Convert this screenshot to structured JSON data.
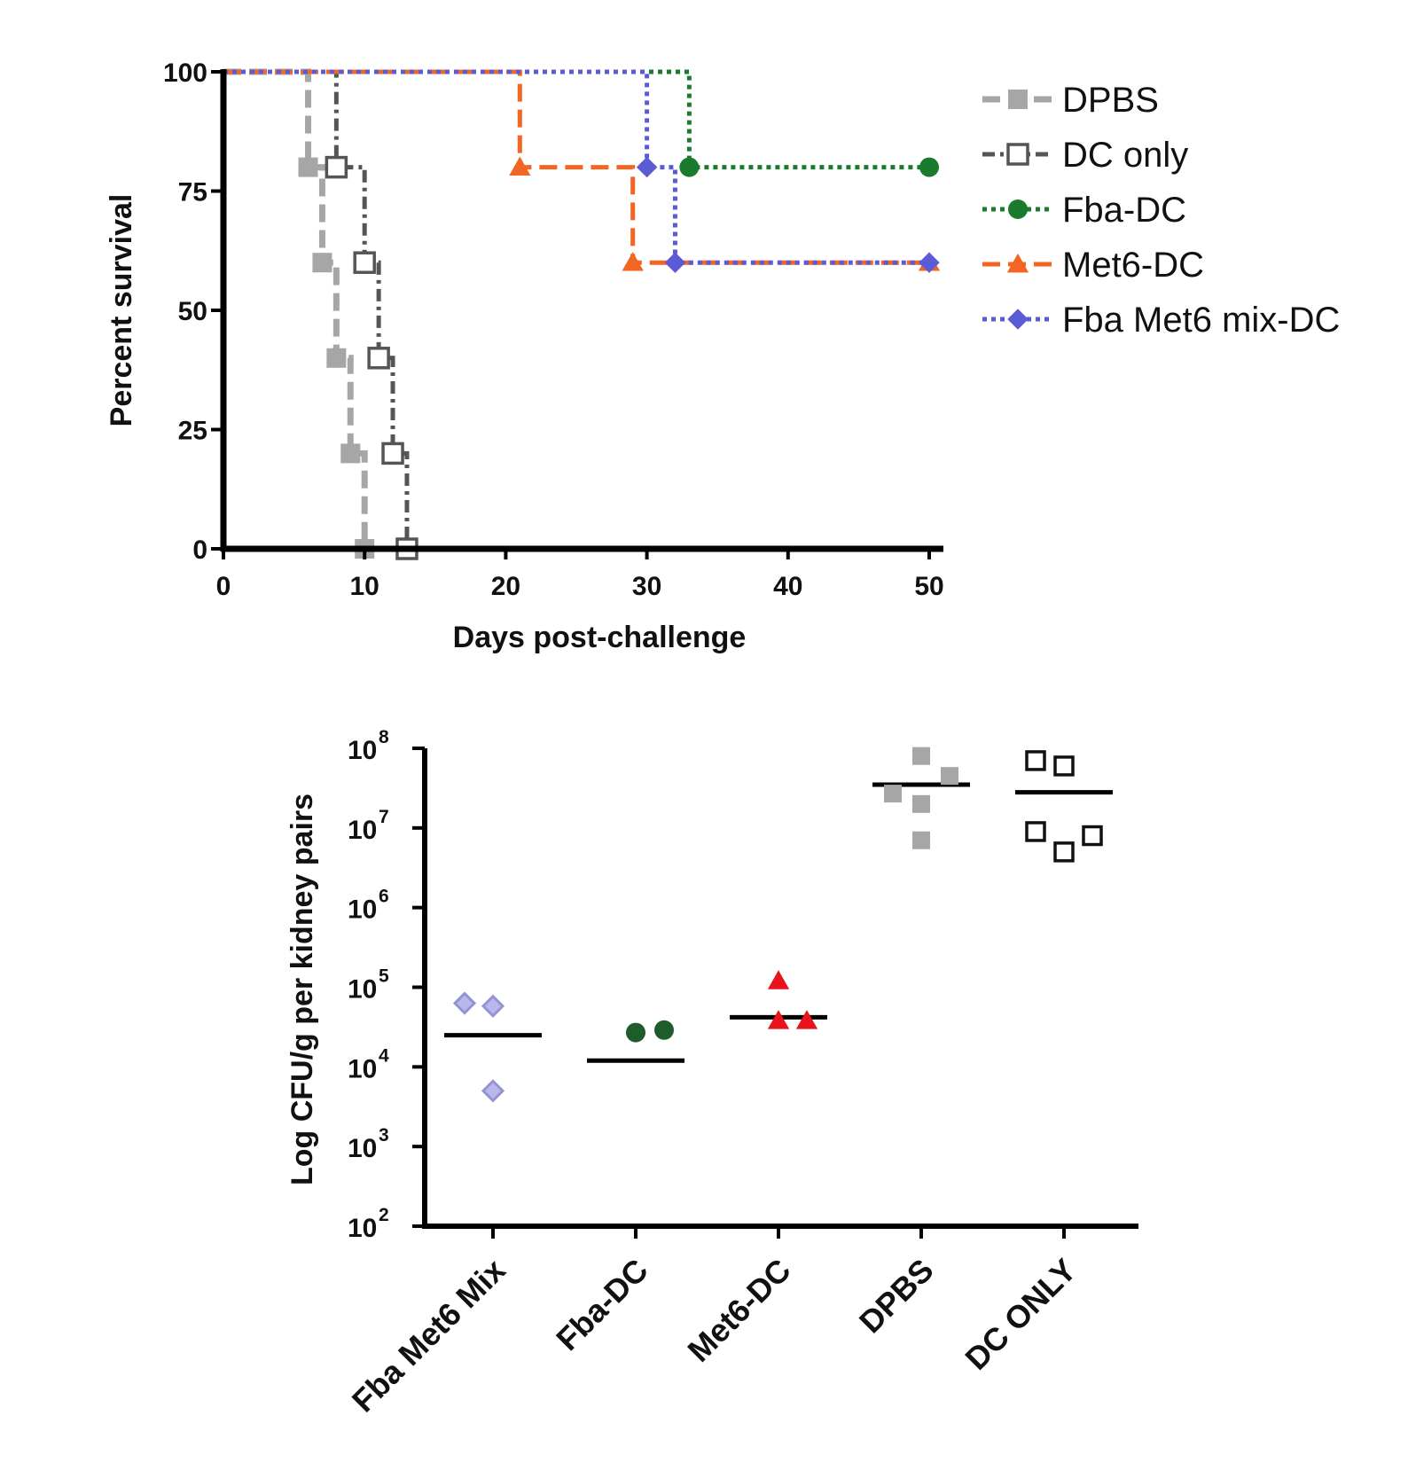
{
  "chart_data": [
    {
      "type": "line",
      "step": true,
      "xlabel": "Days post-challenge",
      "ylabel": "Percent survival",
      "xlim": [
        0,
        50
      ],
      "ylim": [
        0,
        100
      ],
      "xticks": [
        "0",
        "10",
        "20",
        "30",
        "40",
        "50"
      ],
      "yticks": [
        "0",
        "25",
        "50",
        "75",
        "100"
      ],
      "legend_position": "right",
      "series": [
        {
          "name": "DPBS",
          "color": "#a6a6a6",
          "marker": "square-filled",
          "line": "dashed",
          "x": [
            0,
            6,
            7,
            8,
            9,
            10
          ],
          "y": [
            100,
            80,
            60,
            40,
            20,
            0
          ]
        },
        {
          "name": "DC only",
          "color": "#555555",
          "marker": "square-open",
          "line": "dash-dot",
          "x": [
            0,
            8,
            10,
            11,
            12,
            13
          ],
          "y": [
            100,
            80,
            60,
            40,
            20,
            0
          ]
        },
        {
          "name": "Fba-DC",
          "color": "#1a7a2e",
          "marker": "circle-filled",
          "line": "dotted",
          "x": [
            0,
            33,
            50
          ],
          "y": [
            100,
            80,
            80
          ]
        },
        {
          "name": "Met6-DC",
          "color": "#f26522",
          "marker": "triangle-filled",
          "line": "dashed",
          "x": [
            0,
            21,
            29,
            50
          ],
          "y": [
            100,
            80,
            60,
            60
          ]
        },
        {
          "name": "Fba Met6 mix-DC",
          "color": "#5b5bd6",
          "marker": "diamond-filled",
          "line": "dotted",
          "x": [
            0,
            30,
            32,
            50
          ],
          "y": [
            100,
            80,
            60,
            60
          ]
        }
      ]
    },
    {
      "type": "scatter",
      "ylabel": "Log CFU/g per kidney pairs",
      "yscale": "log",
      "ylim": [
        100,
        100000000
      ],
      "ytick_base": "10",
      "ytick_exponents": [
        "2",
        "3",
        "4",
        "5",
        "6",
        "7",
        "8"
      ],
      "categories": [
        "Fba Met6 Mix",
        "Fba-DC",
        "Met6-DC",
        "DPBS",
        "DC ONLY"
      ],
      "series": [
        {
          "category": "Fba Met6 Mix",
          "marker": "diamond",
          "color": "#9393d6",
          "points": [
            [
              -0.2,
              63000
            ],
            [
              0.0,
              58000
            ],
            [
              0.0,
              5000
            ]
          ],
          "median": 25000
        },
        {
          "category": "Fba-DC",
          "marker": "circle",
          "color": "#1e5c2a",
          "points": [
            [
              0.0,
              27000
            ],
            [
              0.2,
              29000
            ]
          ],
          "median": 12000
        },
        {
          "category": "Met6-DC",
          "marker": "triangle",
          "color": "#e8141b",
          "points": [
            [
              0.0,
              120000
            ],
            [
              0.0,
              38000
            ],
            [
              0.2,
              38000
            ]
          ],
          "median": 42000
        },
        {
          "category": "DPBS",
          "marker": "square-filled",
          "color": "#a6a6a6",
          "points": [
            [
              0.0,
              80000000
            ],
            [
              0.2,
              45000000
            ],
            [
              -0.2,
              27000000
            ],
            [
              0.0,
              20000000
            ],
            [
              0.0,
              7000000
            ]
          ],
          "median": 35000000
        },
        {
          "category": "DC ONLY",
          "marker": "square-open",
          "color": "#111111",
          "points": [
            [
              -0.2,
              70000000
            ],
            [
              0.0,
              60000000
            ],
            [
              -0.2,
              9000000
            ],
            [
              0.2,
              8000000
            ],
            [
              0.0,
              5000000
            ]
          ],
          "median": 28000000
        }
      ]
    }
  ]
}
